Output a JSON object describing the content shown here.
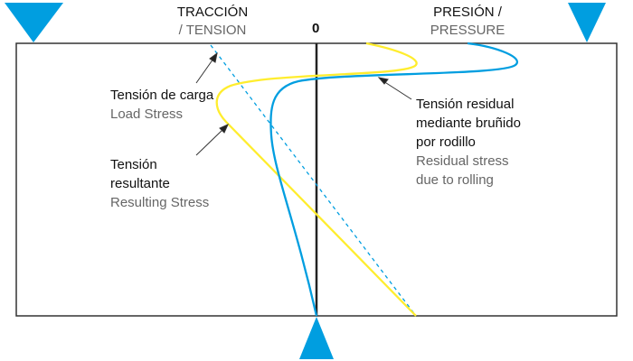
{
  "header": {
    "tension_es": "TRACCIÓN",
    "tension_en": "/ TENSION",
    "zero": "0",
    "pressure_es": "PRESIÓN /",
    "pressure_en": "PRESSURE"
  },
  "labels": {
    "load_es": "Tensión de carga",
    "load_en": "Load Stress",
    "result_es_1": "Tensión",
    "result_es_2": "resultante",
    "result_en": "Resulting Stress",
    "residual_es_1": "Tensión residual",
    "residual_es_2": "mediante bruñido",
    "residual_es_3": "por rodillo",
    "residual_en_1": "Residual stress",
    "residual_en_2": "due to rolling"
  },
  "colors": {
    "blue": "#009ee0",
    "yellow": "#ffed2e",
    "axis": "#222222"
  }
}
